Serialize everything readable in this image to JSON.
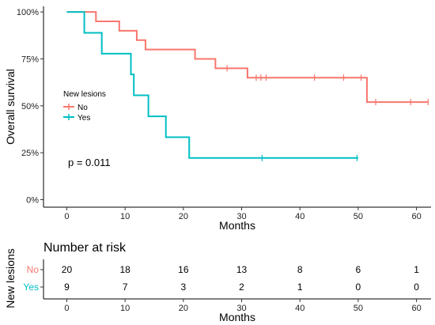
{
  "chart_data": [
    {
      "type": "line",
      "subtype": "kaplan-meier",
      "title": "",
      "xlabel": "Months",
      "ylabel": "Overall survival",
      "xlim": [
        -4,
        62.5
      ],
      "ylim": [
        -0.04,
        1.03
      ],
      "x_ticks": [
        0,
        10,
        20,
        30,
        40,
        50,
        60
      ],
      "y_ticks": [
        0,
        0.25,
        0.5,
        0.75,
        1.0
      ],
      "y_tick_labels": [
        "0%",
        "25%",
        "50%",
        "75%",
        "100%"
      ],
      "grid": false,
      "legend": {
        "title": "New lesions",
        "placement": "center-left"
      },
      "annotation": "p = 0.011",
      "series": [
        {
          "name": "No",
          "color": "#F8766D",
          "steps": [
            {
              "x": 0,
              "y": 1.0
            },
            {
              "x": 5,
              "y": 0.95
            },
            {
              "x": 9,
              "y": 0.9
            },
            {
              "x": 12,
              "y": 0.85
            },
            {
              "x": 13.5,
              "y": 0.8
            },
            {
              "x": 22,
              "y": 0.75
            },
            {
              "x": 25.5,
              "y": 0.7
            },
            {
              "x": 31,
              "y": 0.65
            },
            {
              "x": 51.5,
              "y": 0.52
            },
            {
              "x": 62,
              "y": 0.52
            }
          ],
          "censored": [
            {
              "x": 27.5,
              "y": 0.7
            },
            {
              "x": 32.5,
              "y": 0.65
            },
            {
              "x": 33.3,
              "y": 0.65
            },
            {
              "x": 34.2,
              "y": 0.65
            },
            {
              "x": 42.5,
              "y": 0.65
            },
            {
              "x": 47.5,
              "y": 0.65
            },
            {
              "x": 50.5,
              "y": 0.65
            },
            {
              "x": 53,
              "y": 0.52
            },
            {
              "x": 59,
              "y": 0.52
            },
            {
              "x": 62,
              "y": 0.52
            }
          ]
        },
        {
          "name": "Yes",
          "color": "#00BFC4",
          "steps": [
            {
              "x": 0,
              "y": 1.0
            },
            {
              "x": 3,
              "y": 0.889
            },
            {
              "x": 6,
              "y": 0.778
            },
            {
              "x": 11,
              "y": 0.667
            },
            {
              "x": 11.5,
              "y": 0.556
            },
            {
              "x": 14,
              "y": 0.444
            },
            {
              "x": 17,
              "y": 0.333
            },
            {
              "x": 21,
              "y": 0.222
            },
            {
              "x": 50,
              "y": 0.222
            }
          ],
          "censored": [
            {
              "x": 33.5,
              "y": 0.222
            },
            {
              "x": 49.8,
              "y": 0.222
            }
          ]
        }
      ]
    },
    {
      "type": "table",
      "title": "Number at risk",
      "xlabel": "Months",
      "ylabel": "New lesions",
      "xlim": [
        -4,
        62.5
      ],
      "x_ticks": [
        0,
        10,
        20,
        30,
        40,
        50,
        60
      ],
      "x": [
        0,
        10,
        20,
        30,
        40,
        50,
        60
      ],
      "rows": [
        {
          "name": "No",
          "color": "#F8766D",
          "values": [
            20,
            18,
            16,
            13,
            8,
            6,
            1
          ]
        },
        {
          "name": "Yes",
          "color": "#00BFC4",
          "values": [
            9,
            7,
            3,
            2,
            1,
            0,
            0
          ]
        }
      ]
    }
  ]
}
